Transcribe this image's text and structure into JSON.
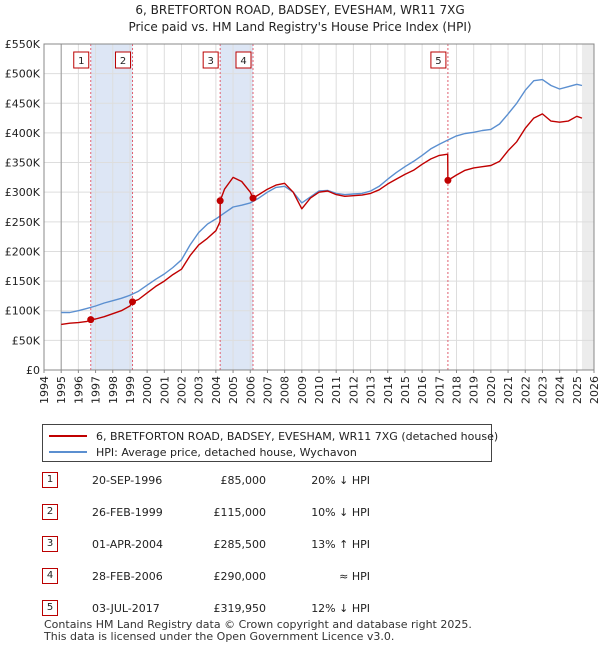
{
  "chart_data": {
    "type": "line",
    "title": "6, BRETFORTON ROAD, BADSEY, EVESHAM, WR11 7XG",
    "subtitle": "Price paid vs. HM Land Registry's House Price Index (HPI)",
    "xlabel": "",
    "ylabel": "",
    "xlim": [
      1994,
      2026
    ],
    "ylim": [
      0,
      550000
    ],
    "y_ticks": [
      {
        "value": 0,
        "label": "£0"
      },
      {
        "value": 50000,
        "label": "£50K"
      },
      {
        "value": 100000,
        "label": "£100K"
      },
      {
        "value": 150000,
        "label": "£150K"
      },
      {
        "value": 200000,
        "label": "£200K"
      },
      {
        "value": 250000,
        "label": "£250K"
      },
      {
        "value": 300000,
        "label": "£300K"
      },
      {
        "value": 350000,
        "label": "£350K"
      },
      {
        "value": 400000,
        "label": "£400K"
      },
      {
        "value": 450000,
        "label": "£450K"
      },
      {
        "value": 500000,
        "label": "£500K"
      },
      {
        "value": 550000,
        "label": "£550K"
      }
    ],
    "x_ticks": [
      "1994",
      "1995",
      "1996",
      "1997",
      "1998",
      "1999",
      "2000",
      "2001",
      "2002",
      "2003",
      "2004",
      "2005",
      "2006",
      "2007",
      "2008",
      "2009",
      "2010",
      "2011",
      "2012",
      "2013",
      "2014",
      "2015",
      "2016",
      "2017",
      "2018",
      "2019",
      "2020",
      "2021",
      "2022",
      "2023",
      "2024",
      "2025",
      "2026"
    ],
    "grid": true,
    "data_start": 1995.0,
    "data_end": 2025.3,
    "shaded_ranges": [
      [
        1996.72,
        1999.15
      ],
      [
        2004.25,
        2006.16
      ],
      [
        2017.5,
        2017.5
      ]
    ],
    "series": [
      {
        "name": "6, BRETFORTON ROAD, BADSEY, EVESHAM, WR11 7XG (detached house)",
        "color": "#c00000",
        "points": [
          [
            1995.0,
            77000
          ],
          [
            1995.5,
            79000
          ],
          [
            1996.0,
            80000
          ],
          [
            1996.5,
            82000
          ],
          [
            1996.72,
            85000
          ],
          [
            1997.0,
            86000
          ],
          [
            1997.5,
            90000
          ],
          [
            1998.0,
            95000
          ],
          [
            1998.5,
            100000
          ],
          [
            1999.0,
            108000
          ],
          [
            1999.15,
            115000
          ],
          [
            1999.5,
            119000
          ],
          [
            2000.0,
            130000
          ],
          [
            2000.5,
            141000
          ],
          [
            2001.0,
            150000
          ],
          [
            2001.5,
            161000
          ],
          [
            2002.0,
            170000
          ],
          [
            2002.5,
            193000
          ],
          [
            2003.0,
            211000
          ],
          [
            2003.5,
            222000
          ],
          [
            2004.0,
            235000
          ],
          [
            2004.24,
            250000
          ],
          [
            2004.25,
            285500
          ],
          [
            2004.5,
            305000
          ],
          [
            2005.0,
            325000
          ],
          [
            2005.5,
            318000
          ],
          [
            2006.0,
            300000
          ],
          [
            2006.16,
            290000
          ],
          [
            2006.5,
            296000
          ],
          [
            2007.0,
            305000
          ],
          [
            2007.5,
            312000
          ],
          [
            2008.0,
            315000
          ],
          [
            2008.5,
            300000
          ],
          [
            2009.0,
            272000
          ],
          [
            2009.5,
            290000
          ],
          [
            2010.0,
            300000
          ],
          [
            2010.5,
            302000
          ],
          [
            2011.0,
            296000
          ],
          [
            2011.5,
            293000
          ],
          [
            2012.0,
            294000
          ],
          [
            2012.5,
            295000
          ],
          [
            2013.0,
            298000
          ],
          [
            2013.5,
            304000
          ],
          [
            2014.0,
            314000
          ],
          [
            2014.5,
            322000
          ],
          [
            2015.0,
            330000
          ],
          [
            2015.5,
            337000
          ],
          [
            2016.0,
            347000
          ],
          [
            2016.5,
            356000
          ],
          [
            2017.0,
            362000
          ],
          [
            2017.49,
            364000
          ],
          [
            2017.5,
            319950
          ],
          [
            2018.0,
            329000
          ],
          [
            2018.5,
            337000
          ],
          [
            2019.0,
            341000
          ],
          [
            2019.5,
            343000
          ],
          [
            2020.0,
            345000
          ],
          [
            2020.5,
            352000
          ],
          [
            2021.0,
            370000
          ],
          [
            2021.5,
            385000
          ],
          [
            2022.0,
            408000
          ],
          [
            2022.5,
            425000
          ],
          [
            2023.0,
            432000
          ],
          [
            2023.5,
            420000
          ],
          [
            2024.0,
            418000
          ],
          [
            2024.5,
            420000
          ],
          [
            2025.0,
            428000
          ],
          [
            2025.3,
            425000
          ]
        ]
      },
      {
        "name": "HPI: Average price, detached house, Wychavon",
        "color": "#5b8fd0",
        "points": [
          [
            1995.0,
            97000
          ],
          [
            1995.5,
            97000
          ],
          [
            1996.0,
            100000
          ],
          [
            1996.5,
            104000
          ],
          [
            1997.0,
            108000
          ],
          [
            1997.5,
            113000
          ],
          [
            1998.0,
            117000
          ],
          [
            1998.5,
            121000
          ],
          [
            1999.0,
            126000
          ],
          [
            1999.5,
            133000
          ],
          [
            2000.0,
            143000
          ],
          [
            2000.5,
            153000
          ],
          [
            2001.0,
            162000
          ],
          [
            2001.5,
            173000
          ],
          [
            2002.0,
            186000
          ],
          [
            2002.5,
            211000
          ],
          [
            2003.0,
            232000
          ],
          [
            2003.5,
            246000
          ],
          [
            2004.0,
            255000
          ],
          [
            2004.5,
            265000
          ],
          [
            2005.0,
            275000
          ],
          [
            2005.5,
            278000
          ],
          [
            2006.0,
            282000
          ],
          [
            2006.5,
            290000
          ],
          [
            2007.0,
            300000
          ],
          [
            2007.5,
            308000
          ],
          [
            2008.0,
            310000
          ],
          [
            2008.5,
            300000
          ],
          [
            2009.0,
            282000
          ],
          [
            2009.5,
            292000
          ],
          [
            2010.0,
            302000
          ],
          [
            2010.5,
            303000
          ],
          [
            2011.0,
            298000
          ],
          [
            2011.5,
            296000
          ],
          [
            2012.0,
            297000
          ],
          [
            2012.5,
            298000
          ],
          [
            2013.0,
            302000
          ],
          [
            2013.5,
            310000
          ],
          [
            2014.0,
            322000
          ],
          [
            2014.5,
            333000
          ],
          [
            2015.0,
            343000
          ],
          [
            2015.5,
            352000
          ],
          [
            2016.0,
            362000
          ],
          [
            2016.5,
            373000
          ],
          [
            2017.0,
            381000
          ],
          [
            2017.5,
            388000
          ],
          [
            2018.0,
            395000
          ],
          [
            2018.5,
            399000
          ],
          [
            2019.0,
            401000
          ],
          [
            2019.5,
            404000
          ],
          [
            2020.0,
            406000
          ],
          [
            2020.5,
            415000
          ],
          [
            2021.0,
            432000
          ],
          [
            2021.5,
            450000
          ],
          [
            2022.0,
            472000
          ],
          [
            2022.5,
            488000
          ],
          [
            2023.0,
            490000
          ],
          [
            2023.5,
            480000
          ],
          [
            2024.0,
            474000
          ],
          [
            2024.5,
            478000
          ],
          [
            2025.0,
            482000
          ],
          [
            2025.3,
            480000
          ]
        ]
      }
    ],
    "sales": [
      {
        "label": "1",
        "x": 1996.72,
        "y": 85000
      },
      {
        "label": "2",
        "x": 1999.15,
        "y": 115000
      },
      {
        "label": "3",
        "x": 2004.25,
        "y": 285500
      },
      {
        "label": "4",
        "x": 2006.16,
        "y": 290000
      },
      {
        "label": "5",
        "x": 2017.5,
        "y": 319950
      }
    ]
  },
  "legend": {
    "series1": "6, BRETFORTON ROAD, BADSEY, EVESHAM, WR11 7XG (detached house)",
    "series2": "HPI: Average price, detached house, Wychavon"
  },
  "transactions": [
    {
      "num": "1",
      "date": "20-SEP-1996",
      "price": "£85,000",
      "rel": "20% ↓ HPI"
    },
    {
      "num": "2",
      "date": "26-FEB-1999",
      "price": "£115,000",
      "rel": "10% ↓ HPI"
    },
    {
      "num": "3",
      "date": "01-APR-2004",
      "price": "£285,500",
      "rel": "13% ↑ HPI"
    },
    {
      "num": "4",
      "date": "28-FEB-2006",
      "price": "£290,000",
      "rel": "≈ HPI"
    },
    {
      "num": "5",
      "date": "03-JUL-2017",
      "price": "£319,950",
      "rel": "12% ↓ HPI"
    }
  ],
  "footer": {
    "line1": "Contains HM Land Registry data © Crown copyright and database right 2025.",
    "line2": "This data is licensed under the Open Government Licence v3.0."
  },
  "colors": {
    "red": "#c00000",
    "blue": "#5b8fd0",
    "shade": "#dde6f5",
    "grid": "#dddddd"
  }
}
